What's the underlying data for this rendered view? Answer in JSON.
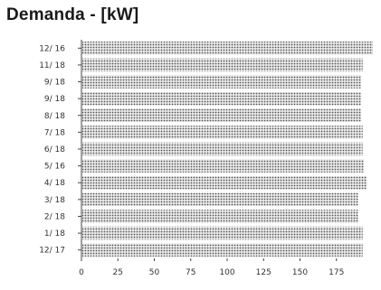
{
  "chart_data": {
    "type": "bar",
    "orientation": "horizontal",
    "title": "Demanda - [kW]",
    "xlabel": "",
    "ylabel": "",
    "categories": [
      "12/ 16",
      "11/ 18",
      "9/ 18",
      "9/ 18",
      "8/ 18",
      "7/ 18",
      "6/ 18",
      "5/ 16",
      "4/ 18",
      "3/ 18",
      "2/ 18",
      "1/ 18",
      "12/ 17"
    ],
    "values": [
      200,
      193,
      192,
      192,
      192,
      193,
      193,
      194,
      196,
      190,
      190,
      193,
      193
    ],
    "xlim": [
      0,
      200
    ],
    "xticks": [
      0,
      25,
      50,
      75,
      100,
      125,
      150,
      175
    ],
    "bar_fill": "dotted-gray",
    "grid": false,
    "legend": "none"
  }
}
